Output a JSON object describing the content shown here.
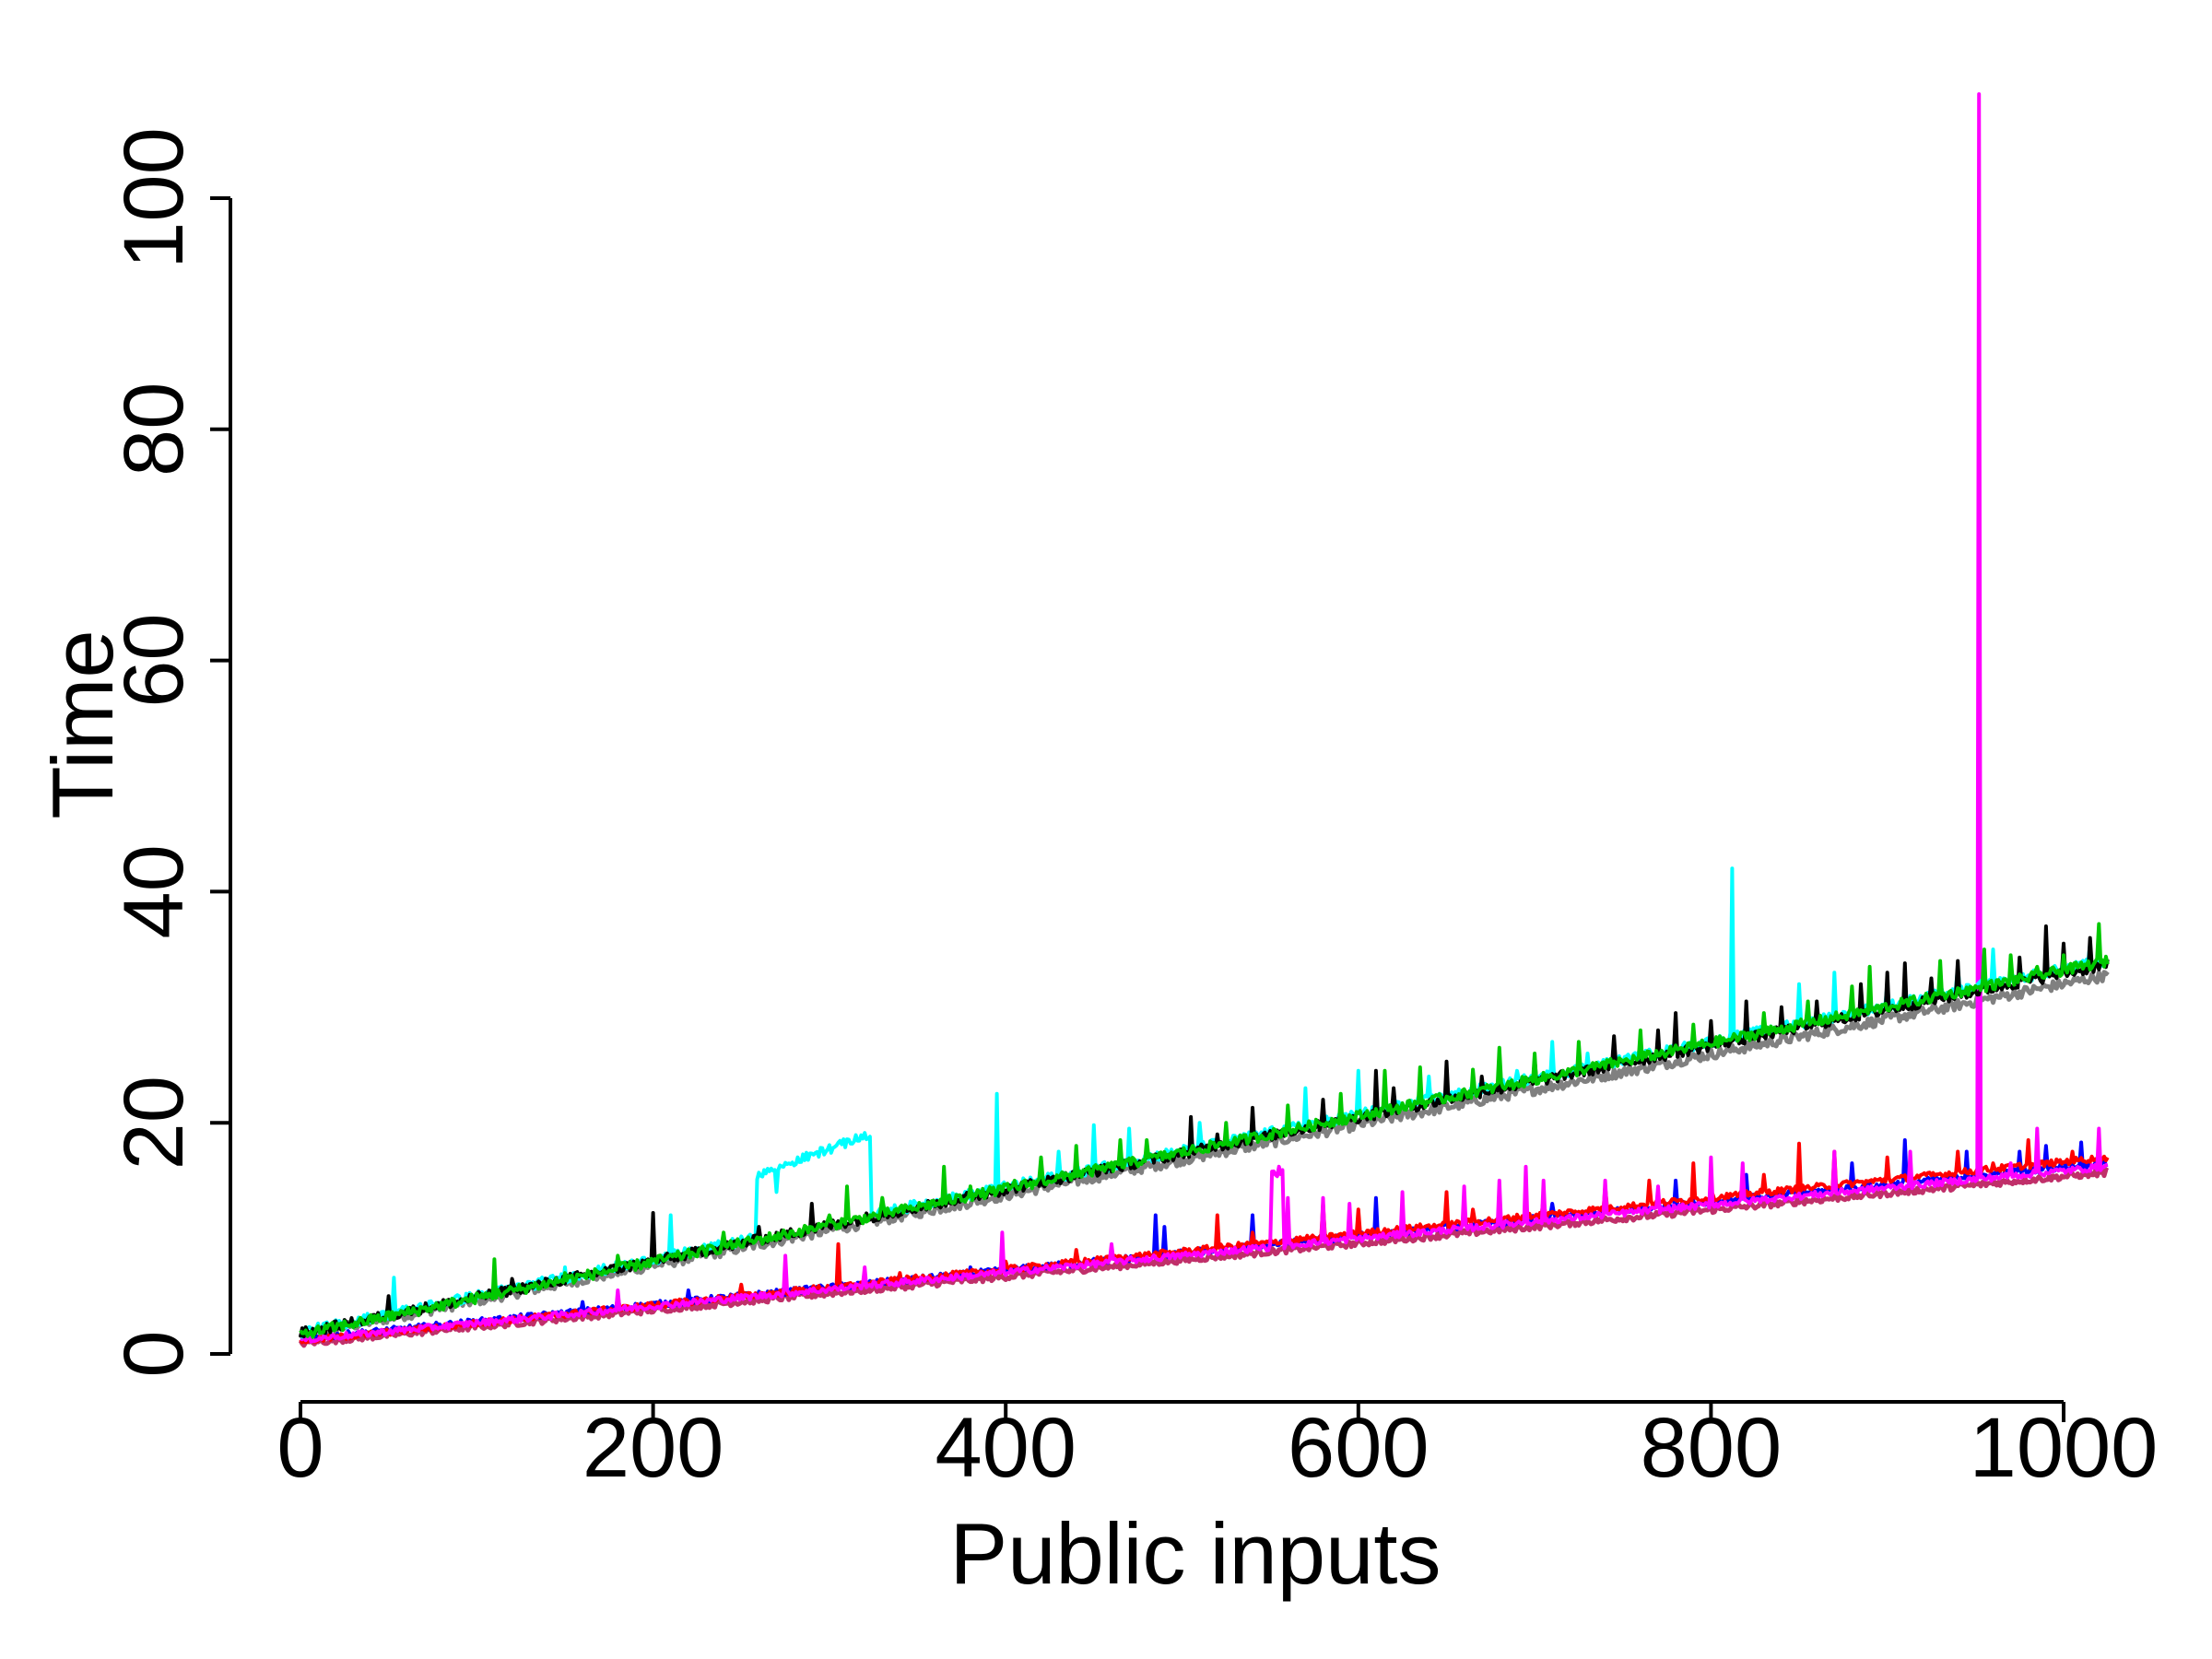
{
  "chart_data": {
    "type": "line",
    "title": "",
    "xlabel": "Public inputs",
    "ylabel": "Time",
    "xlim": [
      0,
      1000
    ],
    "ylim": [
      0,
      100
    ],
    "x_ticks": [
      0,
      200,
      400,
      600,
      800,
      1000
    ],
    "y_ticks": [
      0,
      20,
      40,
      60,
      80,
      100
    ],
    "x_range": [
      0,
      1025
    ],
    "grid": false,
    "legend": "none",
    "series": [
      {
        "color": "#000000",
        "group": "upper",
        "base_x": [
          0,
          1025
        ],
        "base_y": [
          1.6,
          33.5
        ],
        "spikes": [
          [
            50,
            5.0
          ],
          [
            120,
            6.5
          ],
          [
            200,
            12.2
          ],
          [
            260,
            11.0
          ],
          [
            290,
            13.0
          ],
          [
            330,
            12.5
          ],
          [
            380,
            14.0
          ],
          [
            420,
            15.0
          ],
          [
            450,
            16.0
          ],
          [
            480,
            17.0
          ],
          [
            505,
            20.5
          ],
          [
            520,
            19.0
          ],
          [
            540,
            21.3
          ],
          [
            580,
            22.0
          ],
          [
            610,
            24.5
          ],
          [
            620,
            23.0
          ],
          [
            650,
            25.3
          ],
          [
            670,
            24.0
          ],
          [
            700,
            25.5
          ],
          [
            745,
            27.5
          ],
          [
            770,
            28.0
          ],
          [
            780,
            29.5
          ],
          [
            800,
            28.8
          ],
          [
            820,
            30.5
          ],
          [
            840,
            30.0
          ],
          [
            860,
            30.5
          ],
          [
            885,
            32.0
          ],
          [
            900,
            33.0
          ],
          [
            910,
            33.8
          ],
          [
            925,
            32.5
          ],
          [
            940,
            34.0
          ],
          [
            955,
            33.5
          ],
          [
            975,
            34.3
          ],
          [
            990,
            37.0
          ],
          [
            1000,
            35.5
          ],
          [
            1015,
            36.0
          ]
        ]
      },
      {
        "color": "#00c800",
        "group": "upper",
        "base_x": [
          0,
          1025
        ],
        "base_y": [
          1.5,
          33.8
        ],
        "spikes": [
          [
            110,
            8.2
          ],
          [
            150,
            7.0
          ],
          [
            180,
            8.5
          ],
          [
            240,
            10.5
          ],
          [
            300,
            12.0
          ],
          [
            310,
            14.5
          ],
          [
            330,
            13.5
          ],
          [
            365,
            16.2
          ],
          [
            380,
            14.5
          ],
          [
            405,
            15.0
          ],
          [
            420,
            17.0
          ],
          [
            440,
            18.0
          ],
          [
            465,
            18.5
          ],
          [
            480,
            18.5
          ],
          [
            525,
            20.0
          ],
          [
            560,
            21.5
          ],
          [
            590,
            22.5
          ],
          [
            615,
            24.5
          ],
          [
            635,
            24.8
          ],
          [
            665,
            24.6
          ],
          [
            680,
            26.5
          ],
          [
            700,
            26.0
          ],
          [
            725,
            27.0
          ],
          [
            760,
            28.0
          ],
          [
            790,
            28.5
          ],
          [
            830,
            29.5
          ],
          [
            855,
            30.5
          ],
          [
            880,
            31.8
          ],
          [
            890,
            33.5
          ],
          [
            930,
            34.0
          ],
          [
            955,
            35.0
          ],
          [
            970,
            34.5
          ],
          [
            985,
            33.5
          ],
          [
            1000,
            34.5
          ],
          [
            1020,
            37.2
          ]
        ]
      },
      {
        "color": "#00ffff",
        "group": "upper",
        "base_x": [
          0,
          1025
        ],
        "base_y": [
          1.7,
          33.9
        ],
        "plateau": {
          "x": [
            259,
            323
          ],
          "y": [
            15.5,
            19.0
          ]
        },
        "spikes": [
          [
            53,
            6.6
          ],
          [
            90,
            5.0
          ],
          [
            150,
            7.5
          ],
          [
            210,
            12.0
          ],
          [
            270,
            14.0
          ],
          [
            395,
            22.5
          ],
          [
            430,
            17.5
          ],
          [
            450,
            19.8
          ],
          [
            470,
            19.5
          ],
          [
            510,
            20.0
          ],
          [
            560,
            20.0
          ],
          [
            570,
            23.0
          ],
          [
            600,
            24.5
          ],
          [
            640,
            24.0
          ],
          [
            690,
            24.5
          ],
          [
            710,
            27.0
          ],
          [
            730,
            26.0
          ],
          [
            780,
            27.0
          ],
          [
            812,
            42.0
          ],
          [
            850,
            32.0
          ],
          [
            870,
            33.0
          ],
          [
            900,
            32.0
          ],
          [
            940,
            33.5
          ],
          [
            960,
            35.0
          ],
          [
            1000,
            34.5
          ],
          [
            1015,
            35.5
          ]
        ]
      },
      {
        "color": "#808080",
        "group": "upper",
        "base_x": [
          0,
          1025
        ],
        "base_y": [
          1.4,
          32.6
        ],
        "spikes": []
      },
      {
        "color": "#ff0000",
        "group": "lower",
        "base_x": [
          0,
          1025
        ],
        "base_y": [
          1.0,
          16.9
        ],
        "spikes": [
          [
            180,
            5.0
          ],
          [
            250,
            6.0
          ],
          [
            305,
            9.5
          ],
          [
            340,
            7.0
          ],
          [
            400,
            8.0
          ],
          [
            440,
            9.0
          ],
          [
            520,
            12.0
          ],
          [
            540,
            10.5
          ],
          [
            580,
            13.0
          ],
          [
            600,
            12.5
          ],
          [
            650,
            14.0
          ],
          [
            665,
            12.5
          ],
          [
            705,
            13.5
          ],
          [
            740,
            14.5
          ],
          [
            765,
            15.0
          ],
          [
            790,
            16.5
          ],
          [
            830,
            15.5
          ],
          [
            850,
            18.2
          ],
          [
            870,
            17.5
          ],
          [
            900,
            17.0
          ],
          [
            940,
            17.5
          ],
          [
            960,
            16.5
          ],
          [
            980,
            18.5
          ],
          [
            1005,
            17.5
          ]
        ]
      },
      {
        "color": "#0000ff",
        "group": "lower",
        "base_x": [
          0,
          1025
        ],
        "base_y": [
          1.2,
          16.4
        ],
        "spikes": [
          [
            160,
            4.5
          ],
          [
            220,
            5.5
          ],
          [
            380,
            7.5
          ],
          [
            485,
            12.0
          ],
          [
            490,
            11.0
          ],
          [
            540,
            12.0
          ],
          [
            610,
            13.5
          ],
          [
            650,
            12.0
          ],
          [
            710,
            13.0
          ],
          [
            780,
            15.0
          ],
          [
            820,
            15.5
          ],
          [
            880,
            16.5
          ],
          [
            910,
            18.5
          ],
          [
            945,
            17.5
          ],
          [
            975,
            17.5
          ],
          [
            990,
            18.0
          ],
          [
            1010,
            18.3
          ],
          [
            1020,
            18.0
          ]
        ]
      },
      {
        "color": "#ff00ff",
        "group": "lower",
        "base_x": [
          0,
          1025
        ],
        "base_y": [
          1.1,
          16.1
        ],
        "plateau": {
          "x": [
            551,
            557
          ],
          "y": [
            15.5,
            16.0
          ]
        },
        "spikes": [
          [
            180,
            5.5
          ],
          [
            275,
            8.5
          ],
          [
            320,
            7.5
          ],
          [
            398,
            10.5
          ],
          [
            460,
            9.5
          ],
          [
            560,
            13.5
          ],
          [
            580,
            13.5
          ],
          [
            595,
            13.0
          ],
          [
            625,
            14.0
          ],
          [
            660,
            14.5
          ],
          [
            680,
            15.0
          ],
          [
            695,
            16.2
          ],
          [
            705,
            15.0
          ],
          [
            740,
            15.0
          ],
          [
            770,
            14.5
          ],
          [
            800,
            17.0
          ],
          [
            818,
            16.5
          ],
          [
            870,
            17.5
          ],
          [
            913,
            17.5
          ],
          [
            952,
            109.0
          ],
          [
            970,
            16.5
          ],
          [
            985,
            19.5
          ],
          [
            1020,
            19.5
          ]
        ]
      },
      {
        "color": "#c0306a",
        "group": "lower",
        "base_x": [
          0,
          1025
        ],
        "base_y": [
          0.8,
          15.6
        ],
        "spikes": []
      }
    ]
  }
}
